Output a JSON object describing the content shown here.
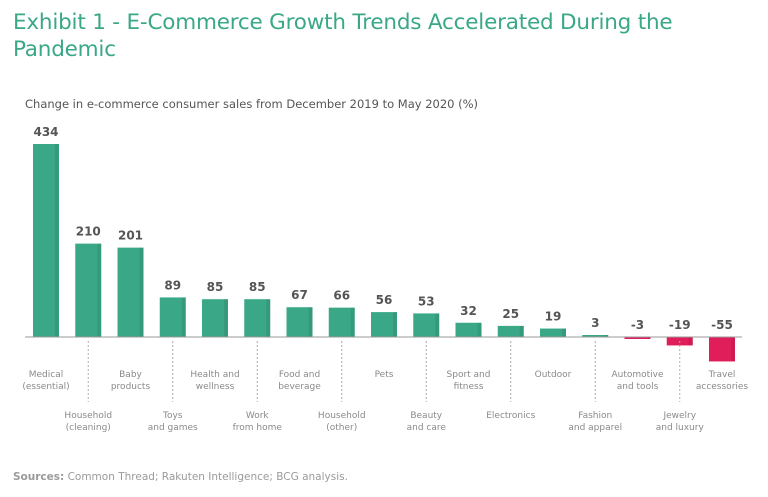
{
  "header": {
    "title": "Exhibit 1 - E-Commerce Growth Trends Accelerated During the Pandemic"
  },
  "footer": {
    "sources_label": "Sources:",
    "sources_text": " Common Thread; Rakuten Intelligence; BCG analysis."
  },
  "colors": {
    "title": "#3aa887",
    "positive": "#3aa887",
    "negative": "#e01e5a",
    "axis": "#999999"
  },
  "chart_data": {
    "type": "bar",
    "title": "Exhibit 1 - E-Commerce Growth Trends Accelerated During the Pandemic",
    "subtitle": "Change in e-commerce consumer sales from December 2019 to May 2020 (%)",
    "xlabel": "",
    "ylabel": "",
    "ylim": [
      -60,
      434
    ],
    "grid": false,
    "legend": "none",
    "categories": [
      [
        "Medical",
        "(essential)"
      ],
      [
        "Household",
        "(cleaning)"
      ],
      [
        "Baby",
        "products"
      ],
      [
        "Toys",
        "and games"
      ],
      [
        "Health and",
        "wellness"
      ],
      [
        "Work",
        "from home"
      ],
      [
        "Food and",
        "beverage"
      ],
      [
        "Household",
        "(other)"
      ],
      [
        "Pets"
      ],
      [
        "Beauty",
        "and care"
      ],
      [
        "Sport and",
        "fitness"
      ],
      [
        "Electronics"
      ],
      [
        "Outdoor"
      ],
      [
        "Fashion",
        "and apparel"
      ],
      [
        "Automotive",
        "and tools"
      ],
      [
        "Jewelry",
        "and luxury"
      ],
      [
        "Travel",
        "accessories"
      ]
    ],
    "values": [
      434,
      210,
      201,
      89,
      85,
      85,
      67,
      66,
      56,
      53,
      32,
      25,
      19,
      3,
      -3,
      -19,
      -55
    ]
  }
}
